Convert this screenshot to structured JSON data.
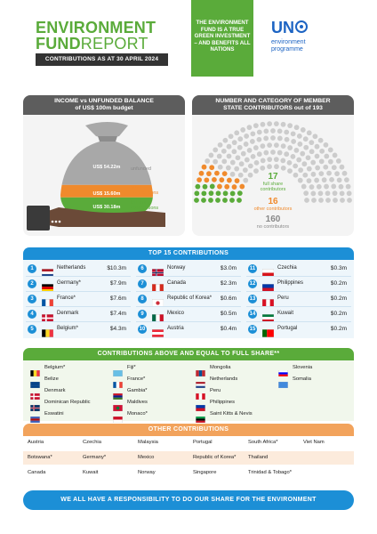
{
  "header": {
    "title_line1": "ENVIRONMENT",
    "title_fund": "FUND",
    "title_report": "REPORT",
    "contributions_as_at": "CONTRIBUTIONS AS AT 30 APRIL 2024",
    "tagline": "THE ENVIRONMENT FUND IS A TRUE GREEN INVESTMENT – AND BENEFITS ALL NATIONS",
    "un_logo_letters": "UN",
    "un_logo_sub1": "environment",
    "un_logo_sub2": "programme",
    "colors": {
      "green": "#5aab3a",
      "blue": "#1c8fd6",
      "orange": "#f2a35c",
      "dark": "#333333",
      "un_blue": "#1d64c3"
    }
  },
  "income": {
    "heading_line1": "INCOME vs UNFUNDED BALANCE",
    "heading_line2": "of US$ 100m budget",
    "unfunded_value": "US$ 54.22m",
    "other_value": "US$ 15.60m",
    "full_value": "US$ 30.18m",
    "unfunded_label": "unfunded",
    "other_label_1": "other",
    "other_label_2": "contributions",
    "full_label_1": "full share",
    "full_label_2": "contributions",
    "fractions": {
      "unfunded": 0.5422,
      "other": 0.156,
      "full": 0.3018
    },
    "colors": {
      "unfunded": "#a8a8a8",
      "other": "#f08a2c",
      "full": "#5aab3a"
    }
  },
  "members": {
    "heading_line1": "NUMBER AND CATEGORY OF MEMBER",
    "heading_line2": "STATE CONTRIBUTORS out of 193",
    "full_count": "17",
    "full_label_1": "full share",
    "full_label_2": "contributors",
    "other_count": "16",
    "other_label": "other contributors",
    "none_count": "160",
    "none_label": "no contributors",
    "counts": {
      "full": 17,
      "other": 16,
      "none": 160,
      "total": 193
    },
    "colors": {
      "full": "#5aab3a",
      "other": "#f08a2c",
      "none": "#cccccc"
    }
  },
  "top15": {
    "heading": "TOP 15 CONTRIBUTIONS",
    "items": [
      {
        "rank": "1",
        "name": "Netherlands",
        "value": "$10.3m",
        "flag": "nl"
      },
      {
        "rank": "2",
        "name": "Germany*",
        "value": "$7.9m",
        "flag": "de"
      },
      {
        "rank": "3",
        "name": "France*",
        "value": "$7.6m",
        "flag": "fr"
      },
      {
        "rank": "4",
        "name": "Denmark",
        "value": "$7.4m",
        "flag": "dk"
      },
      {
        "rank": "5",
        "name": "Belgium*",
        "value": "$4.3m",
        "flag": "be"
      },
      {
        "rank": "6",
        "name": "Norway",
        "value": "$3.0m",
        "flag": "no"
      },
      {
        "rank": "7",
        "name": "Canada",
        "value": "$2.3m",
        "flag": "ca"
      },
      {
        "rank": "8",
        "name": "Republic of Korea*",
        "value": "$0.6m",
        "flag": "kr"
      },
      {
        "rank": "9",
        "name": "Mexico",
        "value": "$0.5m",
        "flag": "mx"
      },
      {
        "rank": "10",
        "name": "Austria",
        "value": "$0.4m",
        "flag": "at"
      },
      {
        "rank": "11",
        "name": "Czechia",
        "value": "$0.3m",
        "flag": "cz"
      },
      {
        "rank": "12",
        "name": "Philippines",
        "value": "$0.2m",
        "flag": "ph"
      },
      {
        "rank": "13",
        "name": "Peru",
        "value": "$0.2m",
        "flag": "pe"
      },
      {
        "rank": "14",
        "name": "Kuwait",
        "value": "$0.2m",
        "flag": "kw"
      },
      {
        "rank": "15",
        "name": "Portugal",
        "value": "$0.2m",
        "flag": "pt"
      }
    ]
  },
  "full_share": {
    "heading": "CONTRIBUTIONS ABOVE AND EQUAL TO FULL SHARE**",
    "columns": [
      [
        {
          "name": "Belgium*",
          "flag": "be"
        },
        {
          "name": "Belize",
          "flag": "bz"
        },
        {
          "name": "Denmark",
          "flag": "dk"
        },
        {
          "name": "Dominican Republic",
          "flag": "do"
        },
        {
          "name": "Eswatini",
          "flag": "sz"
        }
      ],
      [
        {
          "name": "Fiji*",
          "flag": "fj"
        },
        {
          "name": "France*",
          "flag": "fr"
        },
        {
          "name": "Gambia*",
          "flag": "gm"
        },
        {
          "name": "Maldives",
          "flag": "mv"
        },
        {
          "name": "Monaco*",
          "flag": "mc"
        }
      ],
      [
        {
          "name": "Mongolia",
          "flag": "mn"
        },
        {
          "name": "Netherlands",
          "flag": "nl"
        },
        {
          "name": "Peru",
          "flag": "pe"
        },
        {
          "name": "Philippines",
          "flag": "ph"
        },
        {
          "name": "Saint Kitts & Nevis",
          "flag": "kn"
        }
      ],
      [
        {
          "name": "Slovenia",
          "flag": "si"
        },
        {
          "name": "Somalia",
          "flag": "so"
        }
      ]
    ]
  },
  "others": {
    "heading": "OTHER CONTRIBUTIONS",
    "rows": [
      [
        "Austria",
        "Czechia",
        "Malaysia",
        "Portugal",
        "South Africa*",
        "Viet Nam"
      ],
      [
        "Botswana*",
        "Germany*",
        "Mexico",
        "Republic of Korea*",
        "Thailand",
        ""
      ],
      [
        "Canada",
        "Kuwait",
        "Norway",
        "Singapore",
        "Trinidad & Tobago*",
        ""
      ]
    ]
  },
  "footer": {
    "text": "WE ALL HAVE A RESPONSIBILITY TO DO OUR SHARE FOR THE ENVIRONMENT"
  }
}
